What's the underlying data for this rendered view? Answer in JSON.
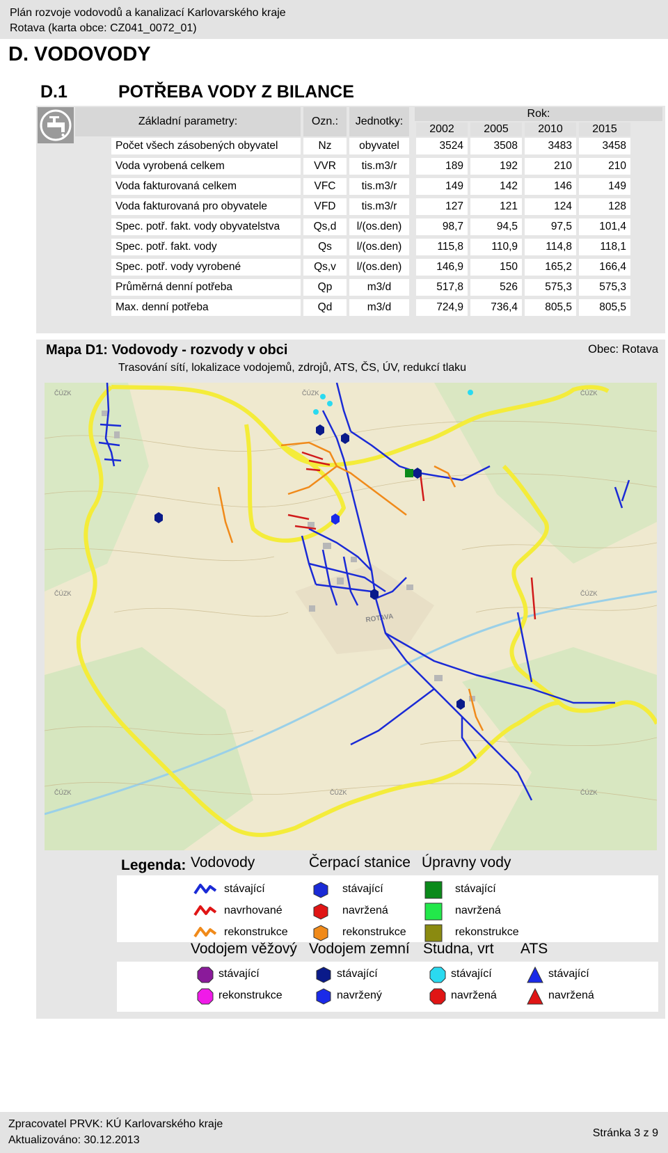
{
  "header": {
    "line1": "Plán rozvoje vodovodů a kanalizací Karlovarského kraje",
    "line2": "Rotava (karta obce: CZ041_0072_01)"
  },
  "section_title": "D. VODOVODY",
  "subsection": {
    "number": "D.1",
    "title": "POTŘEBA VODY Z BILANCE"
  },
  "table": {
    "col_param": "Základní parametry:",
    "col_ozn": "Ozn.:",
    "col_units": "Jednotky:",
    "col_year": "Rok:",
    "years": [
      "2002",
      "2005",
      "2010",
      "2015"
    ],
    "rows": [
      {
        "param": "Počet všech zásobených obyvatel",
        "ozn": "Nz",
        "units": "obyvatel",
        "values": [
          "3524",
          "3508",
          "3483",
          "3458"
        ]
      },
      {
        "param": "Voda vyrobená celkem",
        "ozn": "VVR",
        "units": "tis.m3/r",
        "values": [
          "189",
          "192",
          "210",
          "210"
        ]
      },
      {
        "param": "Voda fakturovaná celkem",
        "ozn": "VFC",
        "units": "tis.m3/r",
        "values": [
          "149",
          "142",
          "146",
          "149"
        ]
      },
      {
        "param": "Voda fakturovaná pro obyvatele",
        "ozn": "VFD",
        "units": "tis.m3/r",
        "values": [
          "127",
          "121",
          "124",
          "128"
        ]
      },
      {
        "param": "Spec. potř. fakt. vody obyvatelstva",
        "ozn": "Qs,d",
        "units": "l/(os.den)",
        "values": [
          "98,7",
          "94,5",
          "97,5",
          "101,4"
        ]
      },
      {
        "param": "Spec. potř. fakt. vody",
        "ozn": "Qs",
        "units": "l/(os.den)",
        "values": [
          "115,8",
          "110,9",
          "114,8",
          "118,1"
        ]
      },
      {
        "param": "Spec. potř. vody vyrobené",
        "ozn": "Qs,v",
        "units": "l/(os.den)",
        "values": [
          "146,9",
          "150",
          "165,2",
          "166,4"
        ]
      },
      {
        "param": "Průměrná denní potřeba",
        "ozn": "Qp",
        "units": "m3/d",
        "values": [
          "517,8",
          "526",
          "575,3",
          "575,3"
        ]
      },
      {
        "param": "Max. denní potřeba",
        "ozn": "Qd",
        "units": "m3/d",
        "values": [
          "724,9",
          "736,4",
          "805,5",
          "805,5"
        ]
      }
    ]
  },
  "map": {
    "title": "Mapa D1:  Vodovody - rozvody v obci",
    "town": "Obec: Rotava",
    "subtitle": "Trasování sítí, lokalizace vodojemů, zdrojů, ATS, ČS, ÚV, redukcí tlaku",
    "place_label": "ROTAVA",
    "copyright": "ČÚZK"
  },
  "legend": {
    "label": "Legenda:",
    "groups1": [
      {
        "title": "Vodovody",
        "items": [
          "stávající",
          "navrhované",
          "rekonstrukce"
        ],
        "colors": [
          "#1a2ad6",
          "#e01515",
          "#f08a1a"
        ]
      },
      {
        "title": "Čerpací stanice",
        "items": [
          "stávající",
          "navržená",
          "rekonstrukce"
        ],
        "colors": [
          "#1a2ad6",
          "#e01515",
          "#f08a1a"
        ]
      },
      {
        "title": "Úpravny vody",
        "items": [
          "stávající",
          "navržená",
          "rekonstrukce"
        ],
        "colors": [
          "#0a8a1a",
          "#22e84a",
          "#8a8a10"
        ]
      }
    ],
    "groups2": [
      {
        "title": "Vodojem věžový",
        "items": [
          "stávající",
          "rekonstrukce"
        ],
        "colors": [
          "#8a1a9a",
          "#f01ae8"
        ]
      },
      {
        "title": "Vodojem zemní",
        "items": [
          "stávající",
          "navržený"
        ],
        "colors": [
          "#0a1a8a",
          "#1a2ae8"
        ]
      },
      {
        "title": "Studna, vrt",
        "items": [
          "stávající",
          "navržená"
        ],
        "colors": [
          "#2adaf0",
          "#e01515"
        ]
      },
      {
        "title": "ATS",
        "items": [
          "stávající",
          "navržená"
        ],
        "colors": [
          "#1a2ae8",
          "#e01515"
        ]
      }
    ]
  },
  "footer": {
    "author": "Zpracovatel PRVK: KÚ Karlovarského kraje",
    "updated": "Aktualizováno: 30.12.2013",
    "page": "Stránka 3 z 9"
  }
}
